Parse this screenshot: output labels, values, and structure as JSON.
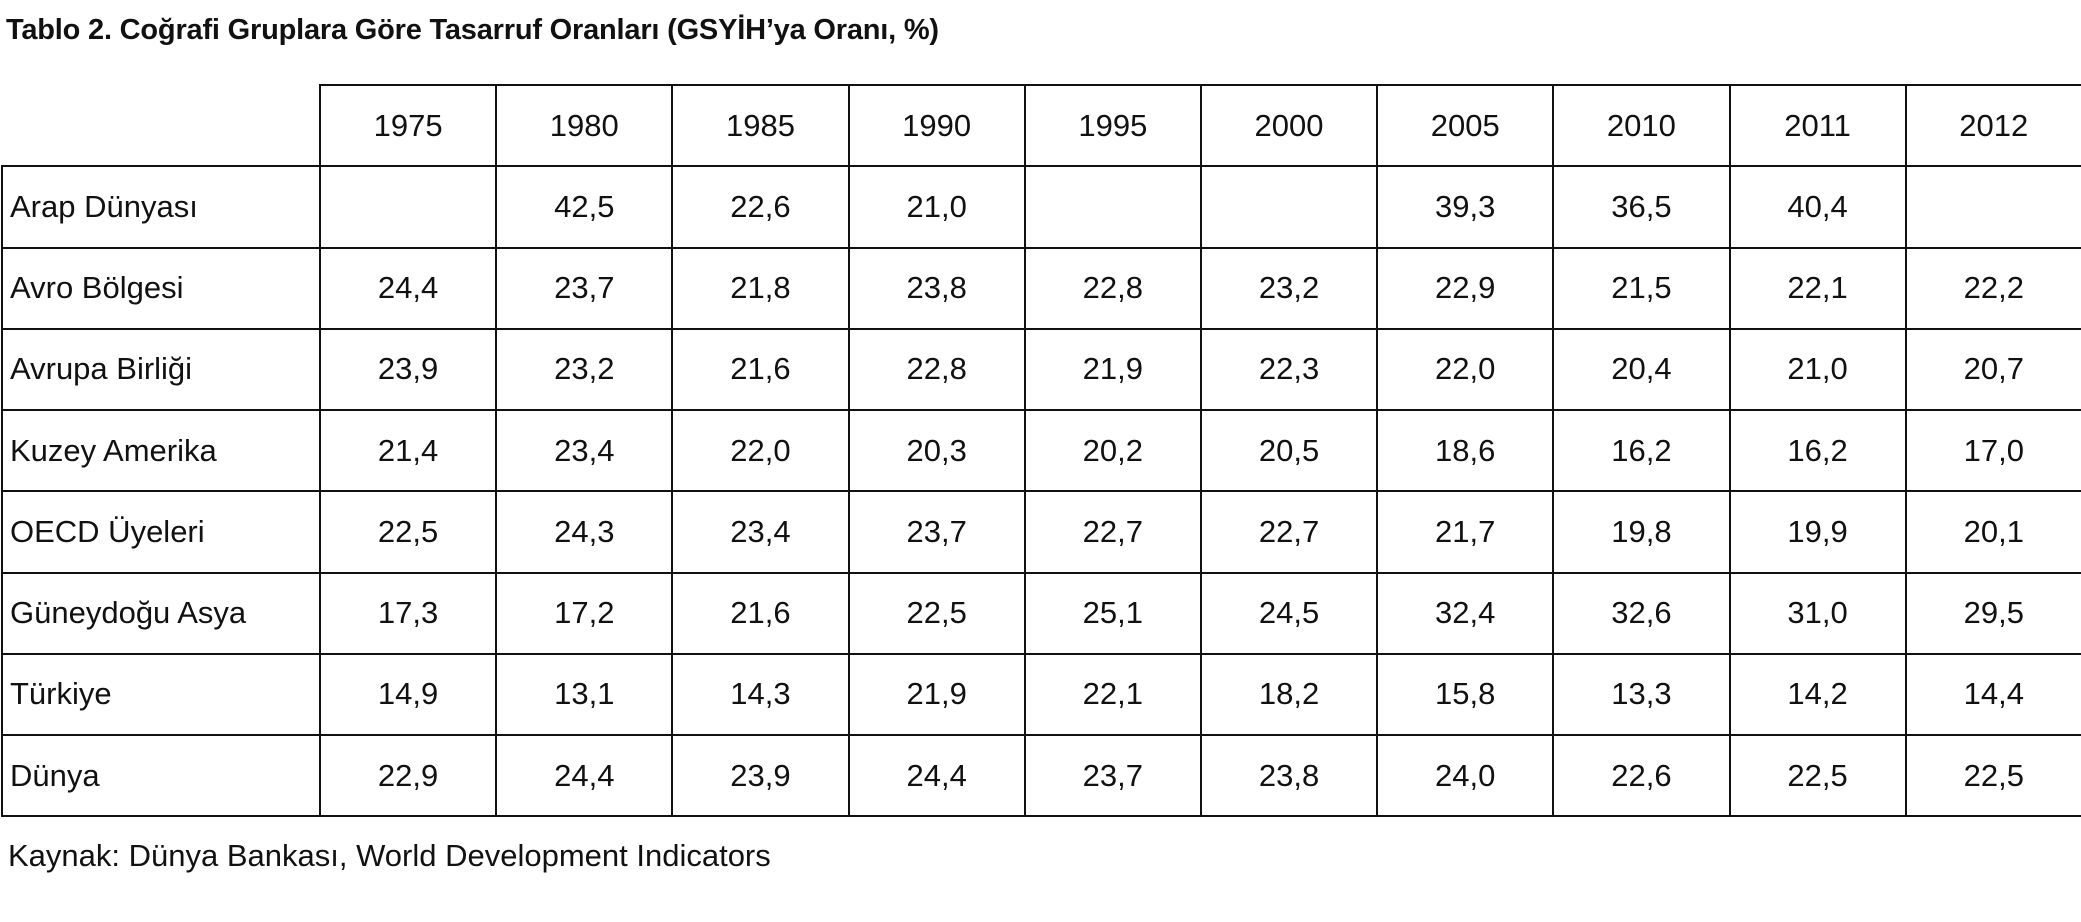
{
  "title": "Tablo 2. Coğrafi Gruplara Göre Tasarruf Oranları (GSYİH’ya Oranı, %)",
  "table": {
    "columns": [
      "1975",
      "1980",
      "1985",
      "1990",
      "1995",
      "2000",
      "2005",
      "2010",
      "2011",
      "2012"
    ],
    "rows": [
      {
        "region": "Arap Dünyası",
        "values": [
          "",
          "42,5",
          "22,6",
          "21,0",
          "",
          "",
          "39,3",
          "36,5",
          "40,4",
          ""
        ]
      },
      {
        "region": "Avro Bölgesi",
        "values": [
          "24,4",
          "23,7",
          "21,8",
          "23,8",
          "22,8",
          "23,2",
          "22,9",
          "21,5",
          "22,1",
          "22,2"
        ]
      },
      {
        "region": "Avrupa Birliği",
        "values": [
          "23,9",
          "23,2",
          "21,6",
          "22,8",
          "21,9",
          "22,3",
          "22,0",
          "20,4",
          "21,0",
          "20,7"
        ]
      },
      {
        "region": "Kuzey Amerika",
        "values": [
          "21,4",
          "23,4",
          "22,0",
          "20,3",
          "20,2",
          "20,5",
          "18,6",
          "16,2",
          "16,2",
          "17,0"
        ]
      },
      {
        "region": "OECD Üyeleri",
        "values": [
          "22,5",
          "24,3",
          "23,4",
          "23,7",
          "22,7",
          "22,7",
          "21,7",
          "19,8",
          "19,9",
          "20,1"
        ]
      },
      {
        "region": "Güneydoğu Asya",
        "values": [
          "17,3",
          "17,2",
          "21,6",
          "22,5",
          "25,1",
          "24,5",
          "32,4",
          "32,6",
          "31,0",
          "29,5"
        ]
      },
      {
        "region": "Türkiye",
        "values": [
          "14,9",
          "13,1",
          "14,3",
          "21,9",
          "22,1",
          "18,2",
          "15,8",
          "13,3",
          "14,2",
          "14,4"
        ]
      },
      {
        "region": "Dünya",
        "values": [
          "22,9",
          "24,4",
          "23,9",
          "24,4",
          "23,7",
          "23,8",
          "24,0",
          "22,6",
          "22,5",
          "22,5"
        ]
      }
    ]
  },
  "source": "Kaynak: Dünya Bankası, World Development Indicators"
}
